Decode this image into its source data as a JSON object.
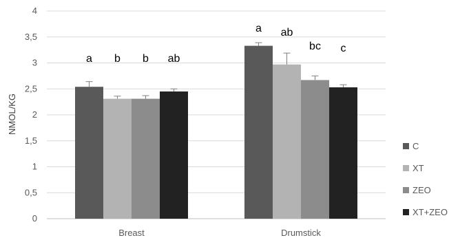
{
  "chart_data": {
    "type": "bar",
    "title": "",
    "xlabel": "",
    "ylabel": "NMOL/KG",
    "ylim": [
      0,
      4
    ],
    "yticks": [
      "0",
      "0,5",
      "1",
      "1,5",
      "2",
      "2,5",
      "3",
      "3,5",
      "4"
    ],
    "ytick_values": [
      0,
      0.5,
      1,
      1.5,
      2,
      2.5,
      3,
      3.5,
      4
    ],
    "grid": true,
    "legend_position": "right",
    "categories": [
      "Breast",
      "Drumstick"
    ],
    "series": [
      {
        "name": "C",
        "color": "#595959",
        "values": [
          2.54,
          3.33
        ],
        "errors": [
          0.1,
          0.06
        ],
        "letters": [
          "a",
          "a"
        ]
      },
      {
        "name": "XT",
        "color": "#b3b3b3",
        "values": [
          2.31,
          2.97
        ],
        "errors": [
          0.05,
          0.22
        ],
        "letters": [
          "b",
          "ab"
        ]
      },
      {
        "name": "ZEO",
        "color": "#8c8c8c",
        "values": [
          2.31,
          2.67
        ],
        "errors": [
          0.06,
          0.08
        ],
        "letters": [
          "b",
          "bc"
        ]
      },
      {
        "name": "XT+ZEO",
        "color": "#222222",
        "values": [
          2.45,
          2.53
        ],
        "errors": [
          0.05,
          0.05
        ],
        "letters": [
          "ab",
          "c"
        ]
      }
    ]
  }
}
